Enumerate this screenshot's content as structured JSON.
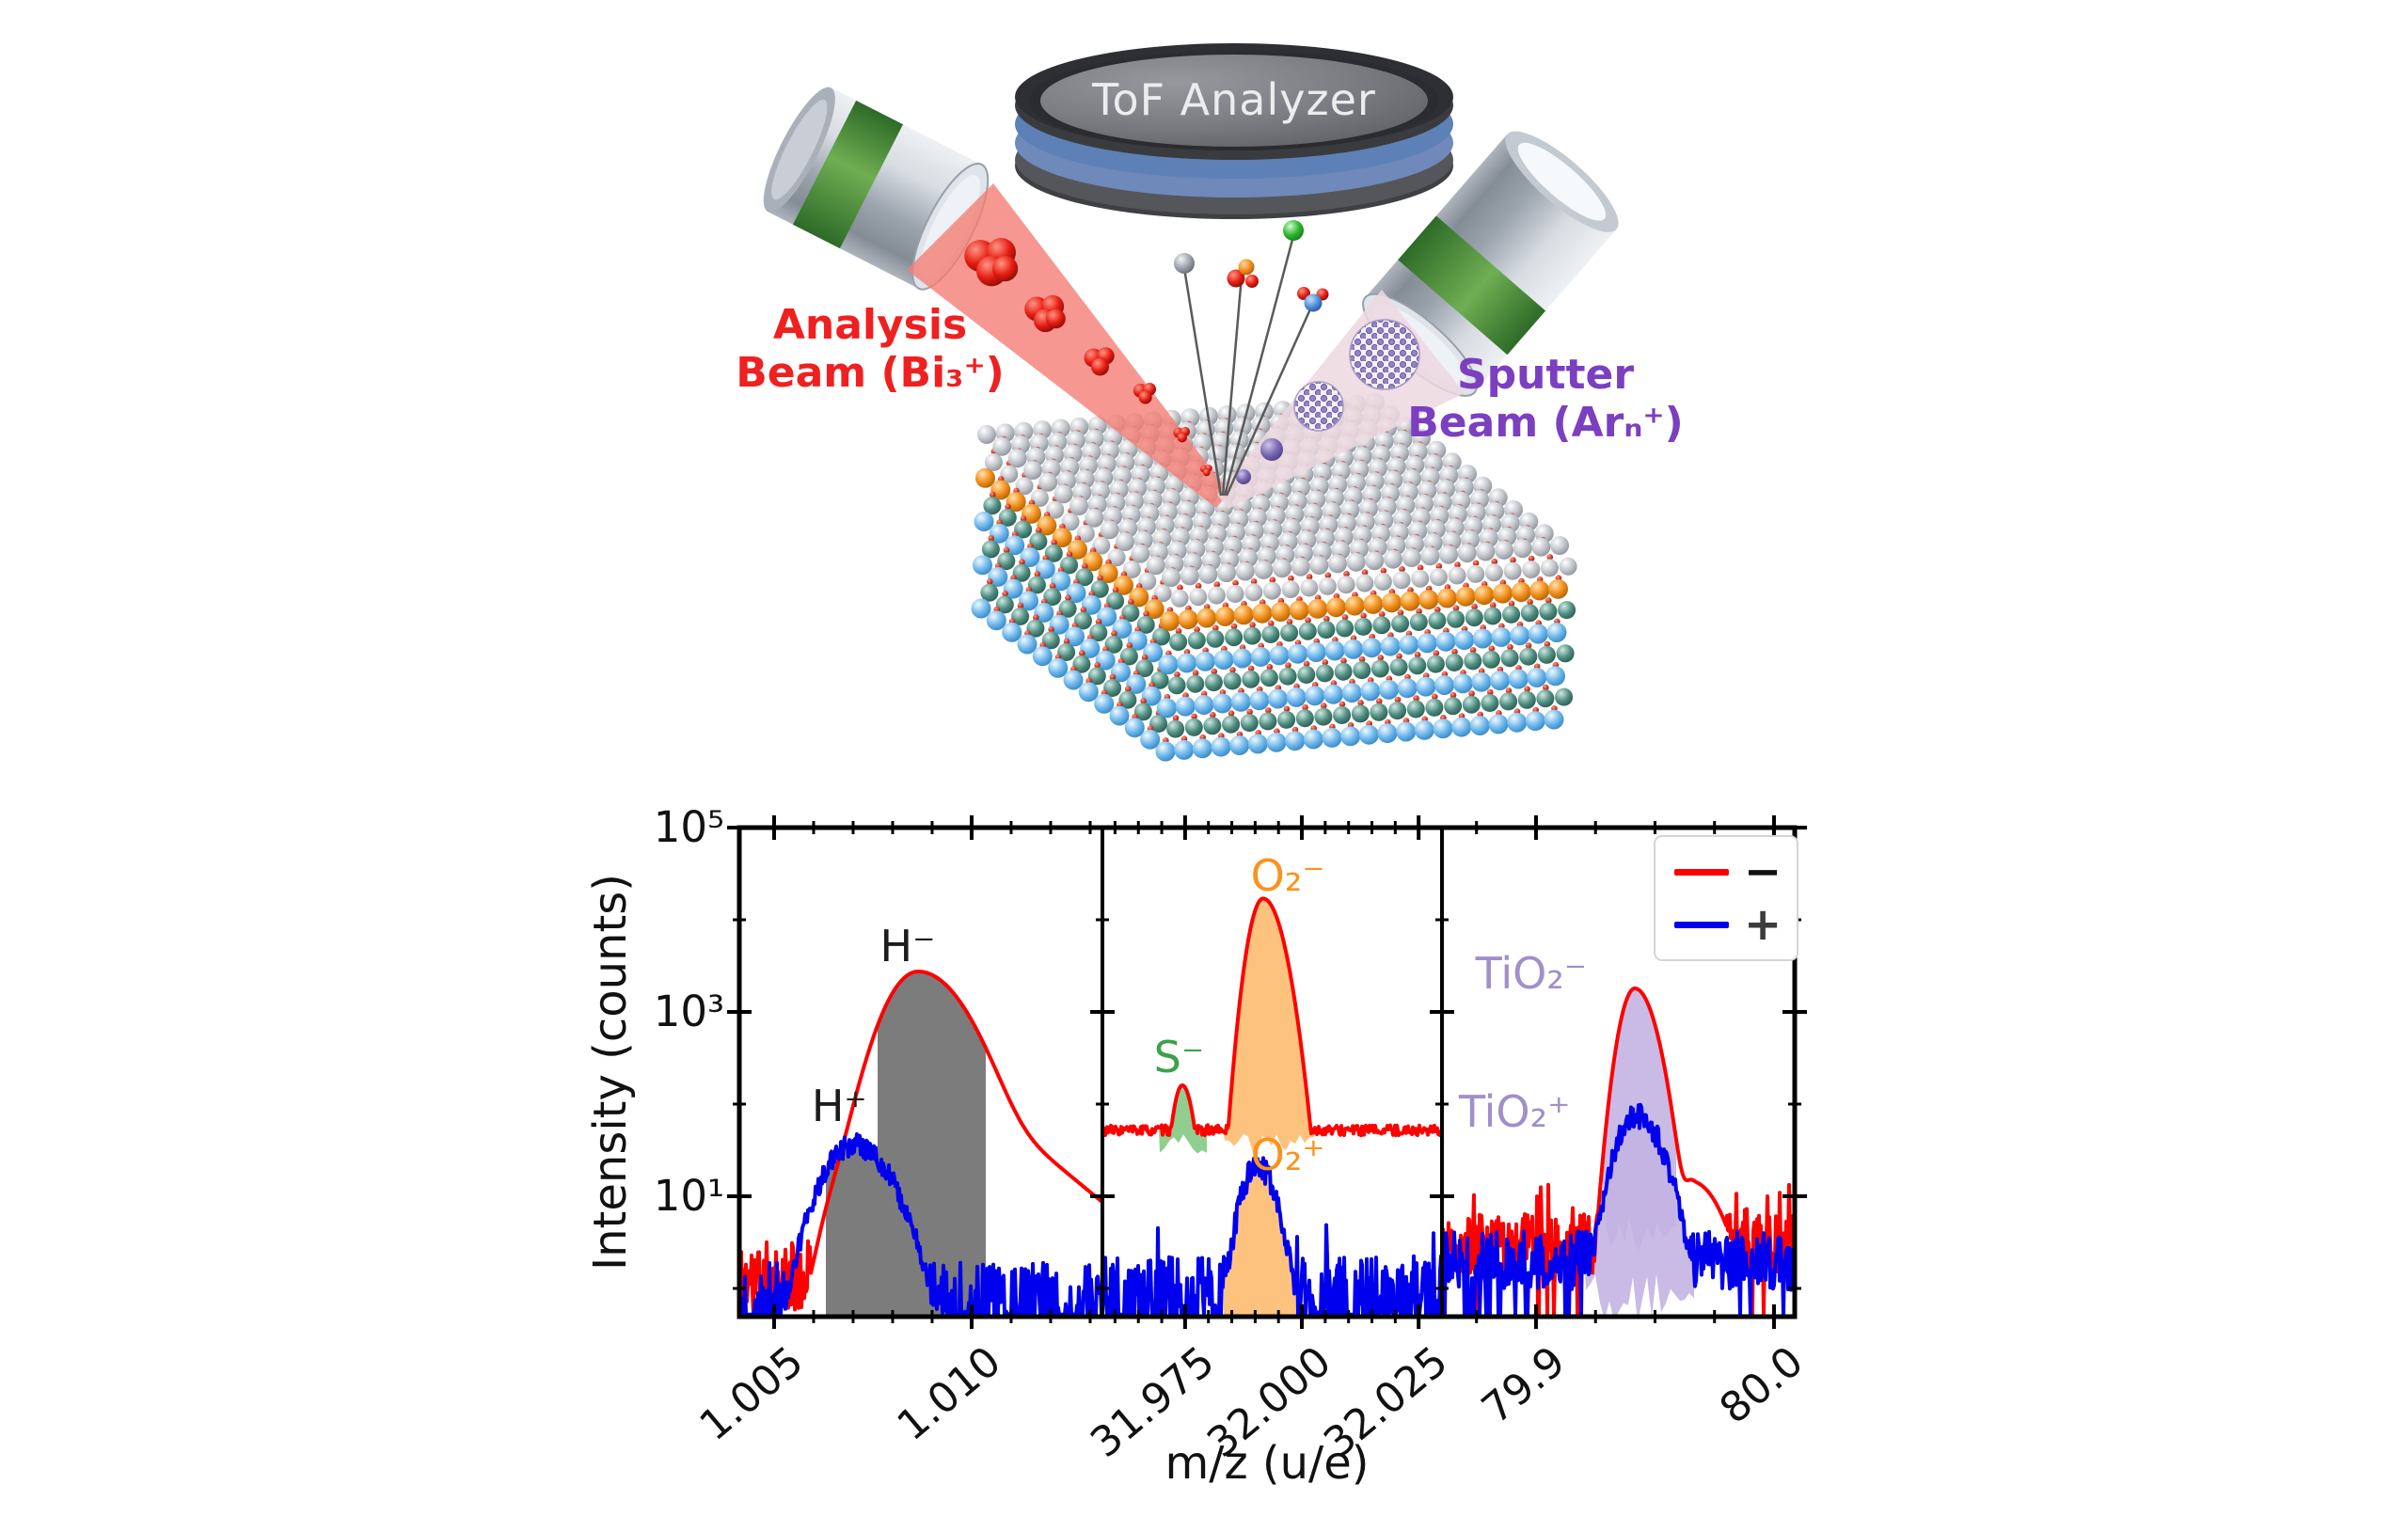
{
  "illustration": {
    "tof_label": "ToF Analyzer",
    "analysis_beam": {
      "line1": "Analysis",
      "line2": "Beam (Bi₃⁺)",
      "color": "#ef2020"
    },
    "sputter_beam": {
      "line1": "Sputter",
      "line2": "Beam (Arₙ⁺)",
      "color": "#7b3fc0"
    },
    "colors": {
      "analyzer_blue_band": "#5d80b6",
      "analyzer_body": "#3a3b3f",
      "gun_green_band": "#5e9c44",
      "analysis_beam_fill": "#f47e76",
      "sputter_beam_fill": "#ecd8df",
      "bismuth_cluster_red": "#e61c12",
      "argon_cluster_purple": "#7a68b0",
      "lattice_top_sphere": "#b9bdc2",
      "lattice_oxygen_red": "#d03a28",
      "lattice_dopant_orange": "#f08c1a",
      "lattice_teal": "#4e8d80",
      "lattice_blue": "#6cb6ea"
    }
  },
  "chart_data": {
    "type": "line",
    "title": "",
    "xlabel": "m/z (u/e)",
    "ylabel": "Intensity (counts)",
    "yscale": "log",
    "ylim": [
      0.5,
      100000
    ],
    "ytick_labels": [
      "10¹",
      "10³",
      "10⁵"
    ],
    "ytick_values": [
      10,
      1000,
      100000
    ],
    "yminor_values": [
      1,
      100,
      10000
    ],
    "grid": false,
    "legend": {
      "position": "upper right",
      "entries": [
        {
          "label": "−",
          "color": "#ff0000",
          "symbol_color": "#111111"
        },
        {
          "label": "+",
          "color": "#0000ee",
          "symbol_color": "#3c3c3c"
        }
      ]
    },
    "panels": [
      {
        "xlim": [
          1.00412,
          1.01331
        ],
        "xticks": [
          1.005,
          1.01
        ],
        "xtick_labels": [
          "1.005",
          "1.010"
        ],
        "minor_tick_step": 0.001,
        "series": [
          {
            "name": "negative ions",
            "color": "#ff0000",
            "seed": 11,
            "baseline": 1.3,
            "noise_dec": 0.4,
            "dropout": 0.07,
            "peaks": [
              {
                "center": 1.00864,
                "amplitude": 2700,
                "sigma_left": 0.00062,
                "sigma_right": 0.00085
              },
              {
                "center": 1.0096,
                "amplitude": 55,
                "sigma_left": 0.0012,
                "sigma_right": 0.0016
              },
              {
                "center": 1.0108,
                "amplitude": 7,
                "sigma_left": 0.002,
                "sigma_right": 0.003
              },
              {
                "center": 1.0066,
                "amplitude": 5,
                "sigma_left": 0.0003,
                "sigma_right": 0.0003
              },
              {
                "center": 1.0071,
                "amplitude": 6,
                "sigma_left": 0.00028,
                "sigma_right": 0.00028
              }
            ]
          },
          {
            "name": "positive ions",
            "color": "#0000ee",
            "seed": 22,
            "baseline": 0.85,
            "noise_dec": 0.35,
            "dropout": 0.42,
            "peaks": [
              {
                "center": 1.00702,
                "amplitude": 36,
                "sigma_left": 0.00062,
                "sigma_right": 0.00072,
                "top_jitter": 0.12
              }
            ]
          }
        ],
        "fills": [
          {
            "series": 1,
            "color": "#7c7c7c",
            "opacity": 1,
            "x0": 1.00631,
            "x1": 1.00762,
            "to": 0.52,
            "ragged": 0
          },
          {
            "series": 0,
            "color": "#7c7c7c",
            "opacity": 1,
            "x0": 1.00762,
            "x1": 1.01036,
            "to": 0.52,
            "ragged": 0
          }
        ],
        "annotations": [
          {
            "text": "H⁺",
            "color": "#1c1c1c",
            "x": 1.00665,
            "y": 95
          },
          {
            "text": "H⁻",
            "color": "#1c1c1c",
            "x": 1.00838,
            "y": 5200
          }
        ]
      },
      {
        "xlim": [
          31.9573,
          32.03
        ],
        "xticks": [
          31.975,
          32.0,
          32.025
        ],
        "xtick_labels": [
          "31.975",
          "32.000",
          "32.025"
        ],
        "minor_tick_step": 0.005,
        "series": [
          {
            "name": "negative ions",
            "color": "#ff0000",
            "seed": 33,
            "baseline": 52,
            "noise_dec": 0.055,
            "dropout": 0,
            "peaks": [
              {
                "center": 31.9744,
                "amplitude": 160,
                "sigma_left": 0.0016,
                "sigma_right": 0.0018
              },
              {
                "center": 31.9917,
                "amplitude": 17000,
                "sigma_left": 0.0022,
                "sigma_right": 0.003
              }
            ]
          },
          {
            "name": "positive ions",
            "color": "#0000ee",
            "seed": 44,
            "baseline": 0.9,
            "noise_dec": 0.4,
            "dropout": 0.35,
            "spike_p": 0.02,
            "spike_amp": 4,
            "peaks": [
              {
                "center": 31.9905,
                "amplitude": 21,
                "sigma_left": 0.0028,
                "sigma_right": 0.0032,
                "top_jitter": 0.14
              }
            ]
          }
        ],
        "fills": [
          {
            "series": 0,
            "color": "#8fce8f",
            "opacity": 1,
            "x0": 31.9694,
            "x1": 31.9796,
            "to": 36,
            "ragged": 0.12
          },
          {
            "series": 0,
            "color": "#fdc37e",
            "opacity": 1,
            "x0": 31.983,
            "x1": 32.0026,
            "to": 38,
            "ragged": 0.12
          },
          {
            "series": 1,
            "color": "#fdc37e",
            "opacity": 1,
            "x0": 31.9832,
            "x1": 31.9992,
            "to": 0.52,
            "ragged": 0
          }
        ],
        "annotations": [
          {
            "text": "S⁻",
            "color": "#3aa24a",
            "x": 31.9737,
            "y": 320
          },
          {
            "text": "O₂⁻",
            "color": "#f8941d",
            "x": 31.997,
            "y": 30000
          },
          {
            "text": "O₂⁺",
            "color": "#f8941d",
            "x": 31.997,
            "y": 28
          }
        ]
      },
      {
        "xlim": [
          79.8605,
          80.0087
        ],
        "xticks": [
          79.9,
          80.0
        ],
        "xtick_labels": [
          "79.9",
          "80.0"
        ],
        "minor_tick_step": 0.025,
        "series": [
          {
            "name": "negative ions",
            "color": "#ff0000",
            "seed": 55,
            "baseline": 3.0,
            "noise_dec": 0.33,
            "dropout": 0.03,
            "spike_p": 0.05,
            "spike_amp": 2.2,
            "peaks": [
              {
                "center": 79.9415,
                "amplitude": 1800,
                "sigma_left": 0.0046,
                "sigma_right": 0.0063
              },
              {
                "center": 79.966,
                "amplitude": 14,
                "sigma_left": 0.0035,
                "sigma_right": 0.0095
              }
            ]
          },
          {
            "name": "positive ions",
            "color": "#0000ee",
            "seed": 66,
            "baseline": 2.0,
            "noise_dec": 0.32,
            "dropout": 0.06,
            "peaks": [
              {
                "center": 79.942,
                "amplitude": 75,
                "sigma_left": 0.0068,
                "sigma_right": 0.0085,
                "top_jitter": 0.13
              }
            ]
          }
        ],
        "fills": [
          {
            "series": 1,
            "color": "#c3b4e2",
            "opacity": 0.9,
            "x0": 79.9205,
            "x1": 79.9665,
            "to": 0.85,
            "ragged": 0.3
          },
          {
            "series": 0,
            "color": "#c3b4e2",
            "opacity": 0.9,
            "x0": 79.9275,
            "x1": 79.959,
            "to": 4,
            "ragged": 0.2
          }
        ],
        "annotations": [
          {
            "text": "TiO₂⁻",
            "color": "#a08fc9",
            "x": 79.898,
            "y": 2600
          },
          {
            "text": "TiO₂⁺",
            "color": "#a08fc9",
            "x": 79.891,
            "y": 82
          }
        ]
      }
    ]
  }
}
